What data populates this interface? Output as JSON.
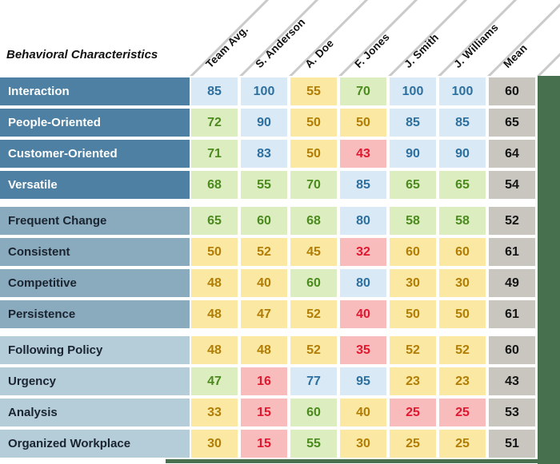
{
  "chart_data": {
    "type": "heatmap",
    "row_header": "Behavioral Characteristics",
    "columns": [
      "Team Avg.",
      "S. Anderson",
      "A. Doe",
      "F. Jones",
      "J. Smith",
      "J. Williams",
      "Mean"
    ],
    "groups": [
      {
        "rows": [
          {
            "label": "Interaction",
            "cells": [
              {
                "v": 85,
                "c": "green_none_blue"
              },
              {
                "v": 100,
                "c": "blue"
              },
              {
                "v": 55,
                "c": "yellow"
              },
              {
                "v": 70,
                "c": "green"
              },
              {
                "v": 100,
                "c": "blue"
              },
              {
                "v": 100,
                "c": "blue"
              },
              {
                "v": 60,
                "c": "gray"
              }
            ]
          },
          {
            "label": "People-Oriented",
            "cells": [
              {
                "v": 72,
                "c": "green"
              },
              {
                "v": 90,
                "c": "blue"
              },
              {
                "v": 50,
                "c": "yellow"
              },
              {
                "v": 50,
                "c": "yellow"
              },
              {
                "v": 85,
                "c": "blue"
              },
              {
                "v": 85,
                "c": "blue"
              },
              {
                "v": 65,
                "c": "gray"
              }
            ]
          },
          {
            "label": "Customer-Oriented",
            "cells": [
              {
                "v": 71,
                "c": "green"
              },
              {
                "v": 83,
                "c": "blue"
              },
              {
                "v": 50,
                "c": "yellow"
              },
              {
                "v": 43,
                "c": "red"
              },
              {
                "v": 90,
                "c": "blue"
              },
              {
                "v": 90,
                "c": "blue"
              },
              {
                "v": 64,
                "c": "gray"
              }
            ]
          },
          {
            "label": "Versatile",
            "cells": [
              {
                "v": 68,
                "c": "green"
              },
              {
                "v": 55,
                "c": "green"
              },
              {
                "v": 70,
                "c": "green"
              },
              {
                "v": 85,
                "c": "blue"
              },
              {
                "v": 65,
                "c": "green"
              },
              {
                "v": 65,
                "c": "green"
              },
              {
                "v": 54,
                "c": "gray"
              }
            ]
          }
        ]
      },
      {
        "rows": [
          {
            "label": "Frequent Change",
            "cells": [
              {
                "v": 65,
                "c": "green"
              },
              {
                "v": 60,
                "c": "green"
              },
              {
                "v": 68,
                "c": "green"
              },
              {
                "v": 80,
                "c": "blue"
              },
              {
                "v": 58,
                "c": "green"
              },
              {
                "v": 58,
                "c": "green"
              },
              {
                "v": 52,
                "c": "gray"
              }
            ]
          },
          {
            "label": "Consistent",
            "cells": [
              {
                "v": 50,
                "c": "yellow"
              },
              {
                "v": 52,
                "c": "yellow"
              },
              {
                "v": 45,
                "c": "yellow"
              },
              {
                "v": 32,
                "c": "red"
              },
              {
                "v": 60,
                "c": "yellow"
              },
              {
                "v": 60,
                "c": "yellow"
              },
              {
                "v": 61,
                "c": "gray"
              }
            ]
          },
          {
            "label": "Competitive",
            "cells": [
              {
                "v": 48,
                "c": "yellow"
              },
              {
                "v": 40,
                "c": "yellow"
              },
              {
                "v": 60,
                "c": "green"
              },
              {
                "v": 80,
                "c": "blue"
              },
              {
                "v": 30,
                "c": "yellow"
              },
              {
                "v": 30,
                "c": "yellow"
              },
              {
                "v": 49,
                "c": "gray"
              }
            ]
          },
          {
            "label": "Persistence",
            "cells": [
              {
                "v": 48,
                "c": "yellow"
              },
              {
                "v": 47,
                "c": "yellow"
              },
              {
                "v": 52,
                "c": "yellow"
              },
              {
                "v": 40,
                "c": "red"
              },
              {
                "v": 50,
                "c": "yellow"
              },
              {
                "v": 50,
                "c": "yellow"
              },
              {
                "v": 61,
                "c": "gray"
              }
            ]
          }
        ]
      },
      {
        "rows": [
          {
            "label": "Following Policy",
            "cells": [
              {
                "v": 48,
                "c": "yellow"
              },
              {
                "v": 48,
                "c": "yellow"
              },
              {
                "v": 52,
                "c": "yellow"
              },
              {
                "v": 35,
                "c": "red"
              },
              {
                "v": 52,
                "c": "yellow"
              },
              {
                "v": 52,
                "c": "yellow"
              },
              {
                "v": 60,
                "c": "gray"
              }
            ]
          },
          {
            "label": "Urgency",
            "cells": [
              {
                "v": 47,
                "c": "green"
              },
              {
                "v": 16,
                "c": "red"
              },
              {
                "v": 77,
                "c": "blue"
              },
              {
                "v": 95,
                "c": "blue"
              },
              {
                "v": 23,
                "c": "yellow"
              },
              {
                "v": 23,
                "c": "yellow"
              },
              {
                "v": 43,
                "c": "gray"
              }
            ]
          },
          {
            "label": "Analysis",
            "cells": [
              {
                "v": 33,
                "c": "yellow"
              },
              {
                "v": 15,
                "c": "red"
              },
              {
                "v": 60,
                "c": "green"
              },
              {
                "v": 40,
                "c": "yellow"
              },
              {
                "v": 25,
                "c": "red"
              },
              {
                "v": 25,
                "c": "red"
              },
              {
                "v": 53,
                "c": "gray"
              }
            ]
          },
          {
            "label": "Organized Workplace",
            "cells": [
              {
                "v": 30,
                "c": "yellow"
              },
              {
                "v": 15,
                "c": "red"
              },
              {
                "v": 55,
                "c": "green"
              },
              {
                "v": 30,
                "c": "yellow"
              },
              {
                "v": 25,
                "c": "yellow"
              },
              {
                "v": 25,
                "c": "yellow"
              },
              {
                "v": 51,
                "c": "gray"
              }
            ]
          }
        ]
      }
    ]
  },
  "colors": {
    "blue_bg": "#d9e9f5",
    "blue_fg": "#2d6f9e",
    "green_bg": "#dcedc0",
    "green_fg": "#4b8a1d",
    "yellow_bg": "#fbe8a2",
    "yellow_fg": "#b17d05",
    "red_bg": "#f9bcbd",
    "red_fg": "#e0182f",
    "gray_bg": "#c9c6c0",
    "gray_fg": "#141414",
    "group1_bg": "#4d80a2",
    "group1_fg": "#ffffff",
    "group2_bg": "#8aaabd",
    "group2_fg": "#1a2430",
    "group3_bg": "#b4cdd9",
    "group3_fg": "#1a2430",
    "accent_green": "#47714e",
    "diag_line": "#cacaca",
    "header_fg": "#111111"
  }
}
